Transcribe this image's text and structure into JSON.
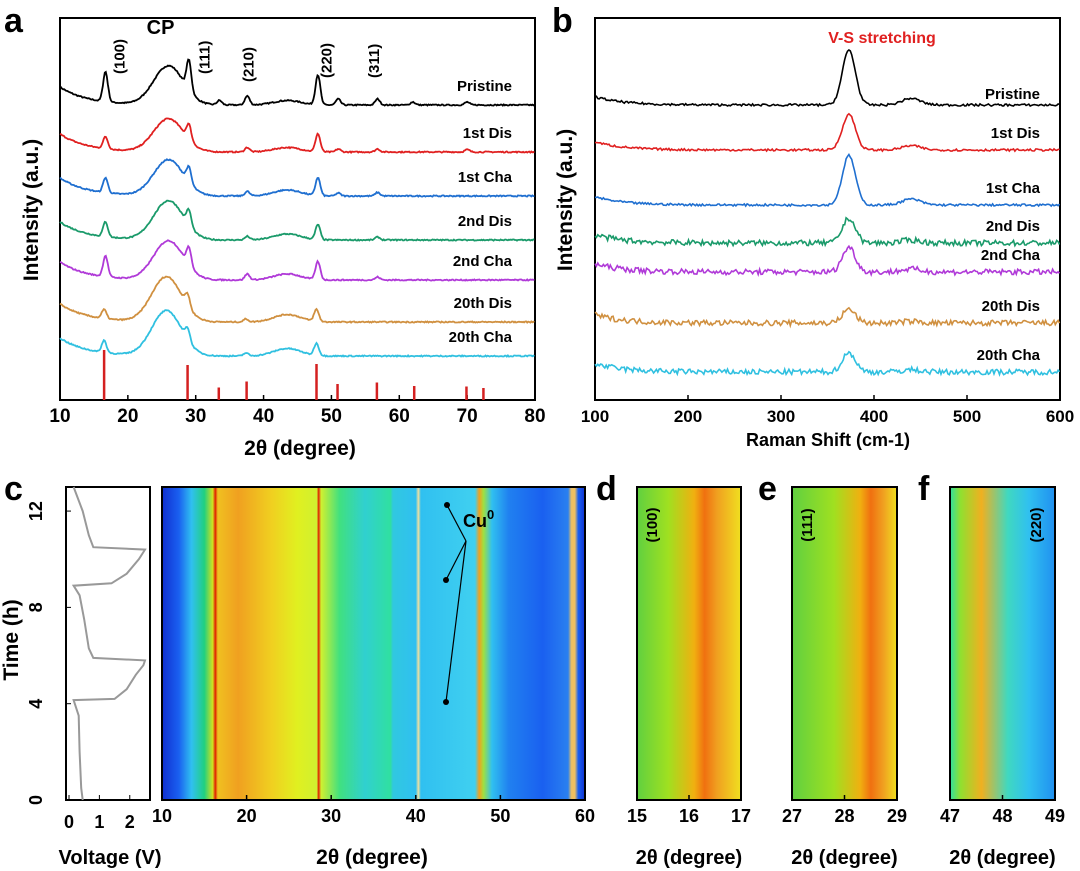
{
  "chart_data": [
    {
      "panel": "a",
      "type": "line",
      "xlabel": "2θ (degree)",
      "ylabel": "Intensity (a.u.)",
      "xlim": [
        10,
        80
      ],
      "xticks": [
        "10",
        "20",
        "30",
        "40",
        "50",
        "60",
        "70",
        "80"
      ],
      "annotations": [
        {
          "text": "CP",
          "x": 26
        },
        {
          "text": "(100)",
          "x": 19.5
        },
        {
          "text": "(111)",
          "x": 32
        },
        {
          "text": "(210)",
          "x": 38.5
        },
        {
          "text": "(220)",
          "x": 50
        },
        {
          "text": "(311)",
          "x": 57
        }
      ],
      "series": [
        {
          "name": "Pristine",
          "color": "#000000",
          "peaks": [
            [
              16.7,
              1.0
            ],
            [
              26,
              1.3
            ],
            [
              29,
              1.0
            ],
            [
              33.5,
              0.15
            ],
            [
              37.6,
              0.3
            ],
            [
              43.5,
              0.15
            ],
            [
              48,
              1.0
            ],
            [
              51,
              0.2
            ],
            [
              56.8,
              0.2
            ],
            [
              62,
              0.1
            ],
            [
              70,
              0.1
            ]
          ]
        },
        {
          "name": "1st Dis",
          "color": "#e02020",
          "peaks": [
            [
              16.7,
              0.4
            ],
            [
              26,
              1.1
            ],
            [
              29,
              0.5
            ],
            [
              37.6,
              0.15
            ],
            [
              43.5,
              0.15
            ],
            [
              48,
              0.6
            ],
            [
              51,
              0.1
            ],
            [
              56.8,
              0.1
            ],
            [
              70,
              0.08
            ]
          ]
        },
        {
          "name": "1st Cha",
          "color": "#1f6fd0",
          "peaks": [
            [
              16.7,
              0.5
            ],
            [
              26,
              1.2
            ],
            [
              29,
              0.5
            ],
            [
              37.6,
              0.15
            ],
            [
              43.5,
              0.2
            ],
            [
              48,
              0.6
            ],
            [
              51,
              0.1
            ],
            [
              56.8,
              0.12
            ]
          ]
        },
        {
          "name": "2nd Dis",
          "color": "#1a9a6a",
          "peaks": [
            [
              16.7,
              0.5
            ],
            [
              26,
              1.3
            ],
            [
              29,
              0.5
            ],
            [
              37.6,
              0.12
            ],
            [
              43.5,
              0.2
            ],
            [
              48,
              0.5
            ],
            [
              56.8,
              0.1
            ]
          ]
        },
        {
          "name": "2nd Cha",
          "color": "#b03ad8",
          "peaks": [
            [
              16.7,
              0.7
            ],
            [
              26,
              1.3
            ],
            [
              29,
              0.6
            ],
            [
              37.6,
              0.2
            ],
            [
              43.5,
              0.2
            ],
            [
              48,
              0.6
            ],
            [
              56.8,
              0.1
            ]
          ]
        },
        {
          "name": "20th Dis",
          "color": "#d09040",
          "peaks": [
            [
              16.5,
              0.3
            ],
            [
              25.7,
              1.5
            ],
            [
              28.8,
              0.4
            ],
            [
              37.4,
              0.1
            ],
            [
              43.5,
              0.25
            ],
            [
              47.8,
              0.4
            ]
          ]
        },
        {
          "name": "20th Cha",
          "color": "#30c0e0",
          "peaks": [
            [
              16.5,
              0.4
            ],
            [
              25.7,
              1.5
            ],
            [
              28.8,
              0.4
            ],
            [
              37.4,
              0.1
            ],
            [
              43.5,
              0.25
            ],
            [
              47.8,
              0.4
            ]
          ]
        }
      ],
      "reference_sticks": {
        "color": "#d42020",
        "x": [
          16.5,
          28.8,
          33.4,
          37.5,
          47.8,
          50.9,
          56.7,
          62.2,
          69.9,
          72.4
        ],
        "intensity": [
          1.0,
          0.7,
          0.25,
          0.37,
          0.72,
          0.32,
          0.35,
          0.28,
          0.27,
          0.24
        ]
      }
    },
    {
      "panel": "b",
      "type": "line",
      "xlabel": "Raman Shift (cm-1)",
      "ylabel": "Intensity (a.u.)",
      "xlim": [
        100,
        600
      ],
      "xticks": [
        "100",
        "200",
        "300",
        "400",
        "500",
        "600"
      ],
      "annotation": "V-S stretching",
      "annotation_color": "#e02020",
      "series": [
        {
          "name": "Pristine",
          "color": "#000000",
          "peak": 1.0
        },
        {
          "name": "1st Dis",
          "color": "#e02020",
          "peak": 0.65
        },
        {
          "name": "1st Cha",
          "color": "#1f6fd0",
          "peak": 0.9
        },
        {
          "name": "2nd Dis",
          "color": "#1a9a6a",
          "peak": 0.45
        },
        {
          "name": "2nd Cha",
          "color": "#b03ad8",
          "peak": 0.45
        },
        {
          "name": "20th Dis",
          "color": "#d09040",
          "peak": 0.25
        },
        {
          "name": "20th Cha",
          "color": "#30c0e0",
          "peak": 0.35
        }
      ],
      "peak_position": 373
    },
    {
      "panel": "c",
      "type": "line",
      "xlabel": "Voltage (V)",
      "ylabel": "Time (h)",
      "xlim": [
        0,
        2.6
      ],
      "ylim": [
        0,
        13
      ],
      "xticks": [
        "0",
        "1",
        "2"
      ],
      "yticks": [
        "0",
        "4",
        "8",
        "12"
      ],
      "color": "#999999",
      "points": [
        [
          0.45,
          0
        ],
        [
          0.4,
          0.5
        ],
        [
          0.35,
          2
        ],
        [
          0.32,
          3.5
        ],
        [
          0.15,
          4.15
        ],
        [
          1.5,
          4.2
        ],
        [
          1.9,
          4.6
        ],
        [
          2.2,
          5.2
        ],
        [
          2.45,
          5.6
        ],
        [
          2.5,
          5.8
        ],
        [
          0.8,
          5.9
        ],
        [
          0.65,
          6.3
        ],
        [
          0.5,
          7.5
        ],
        [
          0.35,
          8.5
        ],
        [
          0.15,
          8.9
        ],
        [
          1.4,
          9
        ],
        [
          1.9,
          9.4
        ],
        [
          2.3,
          10
        ],
        [
          2.5,
          10.4
        ],
        [
          0.8,
          10.5
        ],
        [
          0.65,
          11
        ],
        [
          0.45,
          12
        ],
        [
          0.15,
          13
        ]
      ]
    },
    {
      "panel": "c-map",
      "type": "heatmap",
      "xlabel": "2θ (degree)",
      "xlim": [
        10,
        60
      ],
      "xticks": [
        "10",
        "20",
        "30",
        "40",
        "50",
        "60"
      ],
      "annotation": "Cu0",
      "bands": [
        [
          10,
          "#1030d0"
        ],
        [
          12,
          "#1a60f0"
        ],
        [
          13.5,
          "#30c0f0"
        ],
        [
          15,
          "#20d080"
        ],
        [
          16,
          "#d0e020"
        ],
        [
          16.3,
          "#e02000"
        ],
        [
          16.6,
          "#f0c020"
        ],
        [
          19,
          "#f0a020"
        ],
        [
          23,
          "#f0d020"
        ],
        [
          26,
          "#e0f020"
        ],
        [
          28.3,
          "#d0f030"
        ],
        [
          28.5,
          "#e02000"
        ],
        [
          28.8,
          "#d0f030"
        ],
        [
          31,
          "#40e080"
        ],
        [
          34,
          "#30d0d0"
        ],
        [
          37,
          "#30e0a0"
        ],
        [
          37.3,
          "#30c8e0"
        ],
        [
          40,
          "#30c0f0"
        ],
        [
          40.3,
          "#f0e0a0"
        ],
        [
          40.6,
          "#30c0f0"
        ],
        [
          47,
          "#40d0f0"
        ],
        [
          47.5,
          "#f0a020"
        ],
        [
          48,
          "#a0e040"
        ],
        [
          49,
          "#30c0f0"
        ],
        [
          51,
          "#2080f0"
        ],
        [
          55,
          "#1a60f0"
        ],
        [
          58,
          "#2a80f0"
        ],
        [
          58.4,
          "#f0c060"
        ],
        [
          58.8,
          "#f0c060"
        ],
        [
          59.2,
          "#1a60f0"
        ],
        [
          60,
          "#1030d0"
        ]
      ]
    },
    {
      "panel": "d",
      "type": "heatmap",
      "label": "(100)",
      "xlabel": "2θ (degree)",
      "xlim": [
        15,
        17
      ],
      "xticks": [
        "15",
        "16",
        "17"
      ],
      "peak": 16.3
    },
    {
      "panel": "e",
      "type": "heatmap",
      "label": "(111)",
      "xlabel": "2θ (degree)",
      "xlim": [
        27,
        29
      ],
      "xticks": [
        "27",
        "28",
        "29"
      ],
      "peak": 28.5
    },
    {
      "panel": "f",
      "type": "heatmap",
      "label": "(220)",
      "xlabel": "2θ (degree)",
      "xlim": [
        47,
        49
      ],
      "xticks": [
        "47",
        "48",
        "49"
      ],
      "peak": 47.6
    }
  ],
  "panel_letters": [
    "a",
    "b",
    "c",
    "d",
    "e",
    "f"
  ]
}
